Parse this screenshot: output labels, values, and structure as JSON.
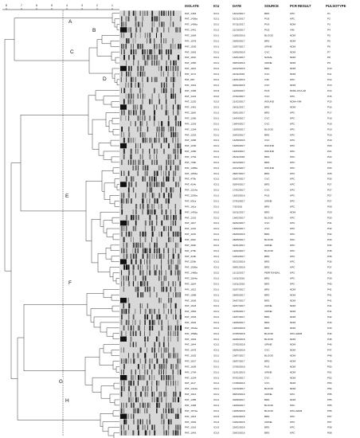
{
  "headers": {
    "isolate": "ISOLATE",
    "icu": "ICU",
    "date": "DATE",
    "source": "SOURCE",
    "pcr": "PCR RESULT",
    "pulsotype": "PULSOTYPE"
  },
  "scale_ticks": [
    "8",
    "7",
    "6",
    "5",
    "4",
    "3",
    "2",
    "1"
  ],
  "cluster_labels": [
    "A",
    "B",
    "C",
    "D",
    "E",
    "F",
    "G",
    "H"
  ],
  "rows": [
    [
      "PAT_1463",
      "ICU1",
      "18/12/2017",
      "BRS",
      "KPC",
      "P1"
    ],
    [
      "PAT_1436a",
      "ICU1",
      "02/11/2017",
      "PUS",
      "KPC",
      "P2"
    ],
    [
      "PAT_1456a",
      "ICU1",
      "07/11/2017",
      "PUS",
      "NDM",
      "P3"
    ],
    [
      "PAT_1441",
      "ICU1",
      "22/10/2017",
      "PUS",
      "VIM",
      "P4"
    ],
    [
      "PAT_1664",
      "ICU1",
      "10/06/2018",
      "BLOOD",
      "NDM",
      "P5"
    ],
    [
      "PAT_1578",
      "ICU1",
      "29/05/2017",
      "BRS",
      "NDM",
      "P6"
    ],
    [
      "PAT_1536",
      "ICU1",
      "23/07/2017",
      "URINE",
      "NDM",
      "P6"
    ],
    [
      "PAT_1663",
      "ICU1",
      "10/06/2018",
      "CVC",
      "NDM",
      "P7"
    ],
    [
      "PAT_1190",
      "ICU1",
      "16/01/2017",
      "NASAL",
      "NDM",
      "P8"
    ],
    [
      "PAT_1050",
      "ICU1",
      "09/04/2016",
      "URINE",
      "NDM",
      "P9"
    ],
    [
      "PAT_1184",
      "ICU1",
      "20/12/2016",
      "BRS",
      "NDM",
      "P10"
    ],
    [
      "PAT_1172",
      "ICU1",
      "24/11/2016",
      "CVC",
      "NDM",
      "P11"
    ],
    [
      "PAT_887",
      "ICU1",
      "15/01/2016",
      "CSF",
      "KPC",
      "P12"
    ],
    [
      "PAT_1001",
      "ICU1",
      "09/02/2016",
      "CVC",
      "NDM",
      "P13"
    ],
    [
      "PAT_1395",
      "ICU3",
      "12/09/2017",
      "PUS",
      "NDM+OXA-48",
      "P14"
    ],
    [
      "PAT_1222",
      "ICU2",
      "27/02/2017",
      "CVC",
      "KPC",
      "P15"
    ],
    [
      "PAT_1220",
      "ICU2",
      "21/02/2017",
      "WOUND",
      "NDM+VIM",
      "P15"
    ],
    [
      "PAT_1461",
      "ICU1",
      "28/11/2017",
      "BRS",
      "NDM",
      "P16"
    ],
    [
      "PAT_1186",
      "ICU1",
      "30/01/2017",
      "BRS",
      "KPC",
      "P17"
    ],
    [
      "PAT_1266",
      "ICU1",
      "14/04/2017",
      "CVC",
      "KPC",
      "P18"
    ],
    [
      "PAT_1293",
      "ICU1",
      "19/04/2017",
      "CVC",
      "KPC",
      "P18"
    ],
    [
      "PAT_1394",
      "ICU1",
      "15/09/2017",
      "BLOOD",
      "KPC",
      "P19"
    ],
    [
      "PAT_1252",
      "ICU1",
      "20/03/2017",
      "BRS",
      "KPC",
      "P19"
    ],
    [
      "PAT_1096",
      "ICU1",
      "14/08/2016",
      "CVC",
      "KPC",
      "P19"
    ],
    [
      "PAT_1230",
      "ICU1",
      "16/06/2017",
      "WOUND",
      "KPC",
      "P20"
    ],
    [
      "PAT_1280",
      "ICU1",
      "16/04/2017",
      "WOUND",
      "KPC",
      "P21"
    ],
    [
      "PAT_1762",
      "ICU1",
      "26/11/2018",
      "BRS",
      "KPC",
      "P22"
    ],
    [
      "PAT_730b",
      "ICU1",
      "04/12/2017",
      "BRS",
      "KPC",
      "P23"
    ],
    [
      "PAT_1465a",
      "ICU1",
      "20/12/2017",
      "WOUND",
      "KPC",
      "P24"
    ],
    [
      "PAT_1053a",
      "ICU1",
      "28/07/2017",
      "BRS",
      "KPC",
      "P25"
    ],
    [
      "PAT_476b",
      "ICU1",
      "26/07/2017",
      "CVC",
      "KPC",
      "P26"
    ],
    [
      "PAT_414b",
      "ICU1",
      "03/04/2017",
      "BRS",
      "KPC",
      "P27"
    ],
    [
      "PAT_1214a",
      "ICU1",
      "17/02/2017",
      "CVC",
      "KPC",
      "P27"
    ],
    [
      "PAT_1030a",
      "ICU1",
      "15/03/2016",
      "PUS",
      "KPC",
      "P27"
    ],
    [
      "PAT_591a",
      "ICU1",
      "27/03/2017",
      "URINE",
      "KPC",
      "P27"
    ],
    [
      "PAT_161a",
      "ICU1",
      "7/3/2016",
      "BRS",
      "KPC",
      "P28"
    ],
    [
      "PAT_1491a",
      "ICU2",
      "03/11/2017",
      "BRS",
      "NDM",
      "P29"
    ],
    [
      "PAT_1215",
      "ICU1",
      "19/02/2017",
      "BLOOD",
      "KPC",
      "P30"
    ],
    [
      "PAT_1197",
      "ICU1",
      "02/02/2017",
      "CVC",
      "KPC",
      "P31"
    ],
    [
      "PAT_1210",
      "ICU1",
      "15/02/2017",
      "CVC",
      "KPC",
      "P32"
    ],
    [
      "PAT_1136",
      "ICU1",
      "26/09/2016",
      "BRS",
      "KPC",
      "P32"
    ],
    [
      "PAT_461b",
      "ICU1",
      "28/05/2017",
      "BLOOD",
      "KPC",
      "P33"
    ],
    [
      "PAT_362b",
      "ICU1",
      "31/01/2017",
      "URINE",
      "KPC",
      "P34"
    ],
    [
      "PAT_376b",
      "ICU1",
      "19/02/2017",
      "BLOOD",
      "KPC",
      "P35"
    ],
    [
      "PAT_419b",
      "ICU1",
      "10/04/2017",
      "BRS",
      "KPC",
      "P35"
    ],
    [
      "PAT_526b",
      "ICU1",
      "05/12/2016",
      "BRS",
      "KPC",
      "P36"
    ],
    [
      "PAT_1506a",
      "ICU1",
      "09/01/2018",
      "BRS",
      "KPC",
      "P37"
    ],
    [
      "PAT_1485a",
      "ICU2",
      "11/12/2017",
      "PERITONEAL",
      "KPC",
      "P38"
    ],
    [
      "PAT_1184a",
      "ICU1",
      "10/11/2016",
      "BRS",
      "KPC",
      "P39"
    ],
    [
      "PAT_1184",
      "ICU1",
      "10/11/2016",
      "BRS",
      "KPC",
      "P40"
    ],
    [
      "PAT_1612",
      "ICU1",
      "02/07/2017",
      "BRS",
      "NDM",
      "P41"
    ],
    [
      "PAT_1588",
      "ICU1",
      "28/05/2017",
      "BRS",
      "NDM",
      "P41"
    ],
    [
      "PAT_1636",
      "ICU1",
      "24/07/2017",
      "BRS",
      "NDM",
      "P41"
    ],
    [
      "PAT_1618",
      "ICU1",
      "02/07/2017",
      "URINE",
      "NDM",
      "P41"
    ],
    [
      "PAT_1584",
      "ICU1",
      "12/06/2017",
      "URINE",
      "NDM",
      "P41"
    ],
    [
      "PAT_1633",
      "ICU1",
      "16/07/2017",
      "BRS",
      "NDM",
      "P42"
    ],
    [
      "PAT_1602",
      "ICU1",
      "16/06/2017",
      "BRS",
      "NDM",
      "P43"
    ],
    [
      "PAT_1543a",
      "ICU1",
      "19/03/2018",
      "BRS",
      "NDM",
      "P43"
    ],
    [
      "PAT_1598a",
      "ICU1",
      "27/05/2018",
      "BLOOD",
      "KPC+NDM",
      "P44"
    ],
    [
      "PAT_1649",
      "ICU1",
      "02/06/2018",
      "BLOOD",
      "NDM",
      "P45"
    ],
    [
      "PAT_1644",
      "ICU1",
      "27/05/2018",
      "URINE",
      "NDM",
      "P46"
    ],
    [
      "PAT_1678",
      "ICU1",
      "28/06/2018",
      "CVC",
      "NDM",
      "P47"
    ],
    [
      "PAT_1625",
      "ICU1",
      "19/07/2017",
      "BLOOD",
      "NDM",
      "P48"
    ],
    [
      "PAT_1627",
      "ICU1",
      "26/07/2017",
      "BRS",
      "NDM",
      "P49"
    ],
    [
      "PAT_1609",
      "ICU1",
      "27/06/2018",
      "PUS",
      "NDM",
      "P50"
    ],
    [
      "PAT_1764",
      "ICU1",
      "21/01/2019",
      "URINE",
      "NDM",
      "P51"
    ],
    [
      "PAT_1204",
      "ICU1",
      "07/02/2017",
      "CVC",
      "NDM",
      "P52"
    ],
    [
      "PAT_1117",
      "ICU1",
      "17/08/2016",
      "CVC",
      "NDM",
      "P53"
    ],
    [
      "PAT_1414a",
      "ICU1",
      "10/10/2017",
      "BLOOD",
      "NDM",
      "P54"
    ],
    [
      "PAT_1613",
      "ICU1",
      "08/04/2016",
      "URINE",
      "KPC",
      "P55"
    ],
    [
      "PAT_1385",
      "ICU1",
      "30/08/2017",
      "BRS",
      "NDM",
      "P55"
    ],
    [
      "PAT_1396",
      "ICU1",
      "16/09/2017",
      "BLOOD",
      "KPC",
      "P55"
    ],
    [
      "PAT_1574a",
      "ICU1",
      "19/05/2018",
      "BLOOD",
      "KPC+NDM",
      "P56"
    ],
    [
      "PAT_1013",
      "ICU3",
      "24/02/2016",
      "BRS",
      "KPC",
      "P57"
    ],
    [
      "PAT_1002",
      "ICU3",
      "10/02/2016",
      "URINE",
      "KPC",
      "P57"
    ],
    [
      "PAT_1016",
      "ICU3",
      "25/02/2016",
      "BRS",
      "KPC",
      "P58"
    ],
    [
      "PAT_1043",
      "ICU3",
      "29/03/2016",
      "BRS",
      "KPC",
      "P58"
    ]
  ]
}
